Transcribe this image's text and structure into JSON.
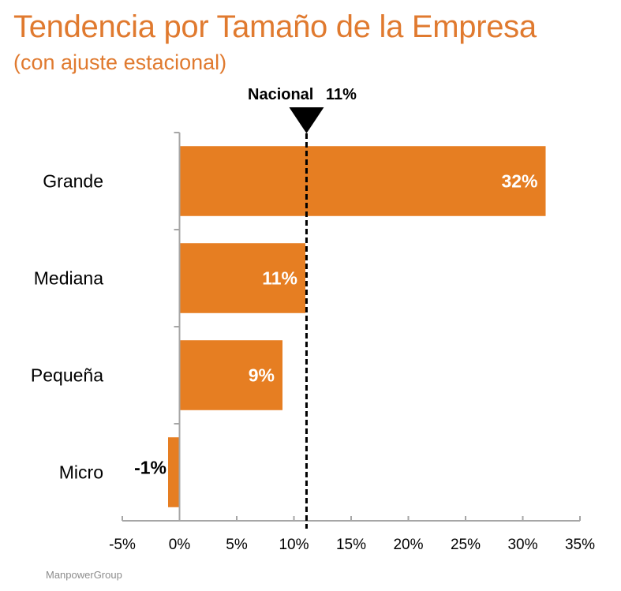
{
  "header": {
    "title": "Tendencia por Tamaño de la Empresa",
    "subtitle": "(con ajuste estacional)"
  },
  "footer": {
    "brand": "ManpowerGroup"
  },
  "colors": {
    "bar": "#e67e22",
    "axis": "#a6a6a6",
    "title": "#e07a2f",
    "reference": "#000000"
  },
  "chart_data": {
    "type": "bar",
    "orientation": "horizontal",
    "title": "Tendencia por Tamaño de la Empresa",
    "subtitle": "(con ajuste estacional)",
    "categories": [
      "Grande",
      "Mediana",
      "Pequeña",
      "Micro"
    ],
    "values": [
      32,
      11,
      9,
      -1
    ],
    "data_labels": [
      "32%",
      "11%",
      "9%",
      "-1%"
    ],
    "value_unit": "%",
    "xlim": [
      -5,
      35
    ],
    "xticks": [
      -5,
      0,
      5,
      10,
      15,
      20,
      25,
      30,
      35
    ],
    "xtick_labels": [
      "-5%",
      "0%",
      "5%",
      "10%",
      "15%",
      "20%",
      "25%",
      "30%",
      "35%"
    ],
    "xlabel": "",
    "ylabel": "",
    "grid": false,
    "legend": "none",
    "reference_line": {
      "label": "Nacional",
      "value": 11.1,
      "value_label": "11%",
      "style": "dashed",
      "marker": "down-triangle"
    }
  }
}
